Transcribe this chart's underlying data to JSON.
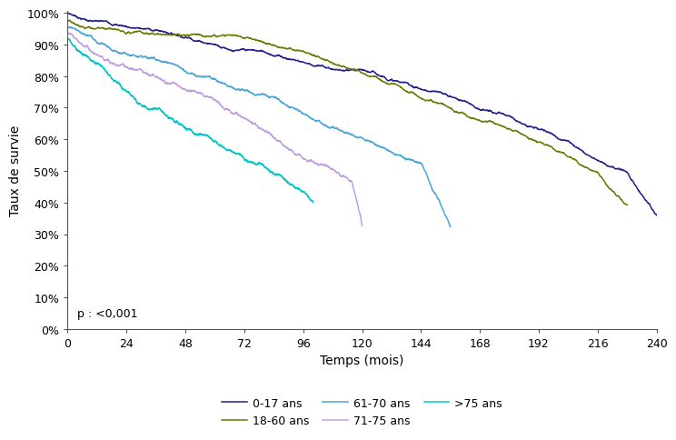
{
  "title": "",
  "ylabel": "Taux de survie",
  "xlabel": "Temps (mois)",
  "annotation": "p : <0,001",
  "xlim": [
    0,
    240
  ],
  "ylim": [
    0.0,
    1.005
  ],
  "xticks": [
    0,
    24,
    48,
    72,
    96,
    120,
    144,
    168,
    192,
    216,
    240
  ],
  "yticks": [
    0.0,
    0.1,
    0.2,
    0.3,
    0.4,
    0.5,
    0.6,
    0.7,
    0.8,
    0.9,
    1.0
  ],
  "background_color": "#ffffff",
  "curve_keypoints": {
    "0-17 ans": [
      [
        0,
        1.0
      ],
      [
        6,
        0.985
      ],
      [
        12,
        0.975
      ],
      [
        24,
        0.963
      ],
      [
        36,
        0.952
      ],
      [
        48,
        0.94
      ],
      [
        60,
        0.927
      ],
      [
        72,
        0.912
      ],
      [
        84,
        0.898
      ],
      [
        96,
        0.882
      ],
      [
        108,
        0.863
      ],
      [
        120,
        0.843
      ],
      [
        132,
        0.818
      ],
      [
        144,
        0.79
      ],
      [
        156,
        0.762
      ],
      [
        168,
        0.73
      ],
      [
        180,
        0.695
      ],
      [
        192,
        0.662
      ],
      [
        204,
        0.625
      ],
      [
        216,
        0.582
      ],
      [
        228,
        0.548
      ],
      [
        240,
        0.42
      ]
    ],
    "18-60 ans": [
      [
        0,
        0.975
      ],
      [
        6,
        0.965
      ],
      [
        12,
        0.958
      ],
      [
        24,
        0.945
      ],
      [
        36,
        0.933
      ],
      [
        48,
        0.92
      ],
      [
        60,
        0.905
      ],
      [
        72,
        0.89
      ],
      [
        84,
        0.872
      ],
      [
        96,
        0.852
      ],
      [
        108,
        0.828
      ],
      [
        120,
        0.8
      ],
      [
        132,
        0.772
      ],
      [
        144,
        0.74
      ],
      [
        156,
        0.706
      ],
      [
        168,
        0.672
      ],
      [
        180,
        0.635
      ],
      [
        192,
        0.595
      ],
      [
        204,
        0.55
      ],
      [
        216,
        0.502
      ],
      [
        228,
        0.39
      ]
    ],
    "61-70 ans": [
      [
        0,
        0.955
      ],
      [
        6,
        0.94
      ],
      [
        12,
        0.927
      ],
      [
        24,
        0.903
      ],
      [
        36,
        0.878
      ],
      [
        48,
        0.851
      ],
      [
        60,
        0.822
      ],
      [
        72,
        0.791
      ],
      [
        84,
        0.758
      ],
      [
        96,
        0.722
      ],
      [
        108,
        0.683
      ],
      [
        120,
        0.643
      ],
      [
        132,
        0.6
      ],
      [
        144,
        0.555
      ],
      [
        156,
        0.355
      ]
    ],
    "71-75 ans": [
      [
        0,
        0.938
      ],
      [
        6,
        0.91
      ],
      [
        12,
        0.882
      ],
      [
        24,
        0.845
      ],
      [
        36,
        0.805
      ],
      [
        48,
        0.763
      ],
      [
        60,
        0.72
      ],
      [
        72,
        0.675
      ],
      [
        84,
        0.628
      ],
      [
        96,
        0.578
      ],
      [
        108,
        0.525
      ],
      [
        116,
        0.48
      ],
      [
        120,
        0.345
      ]
    ],
    ">75 ans": [
      [
        0,
        0.92
      ],
      [
        6,
        0.873
      ],
      [
        12,
        0.832
      ],
      [
        18,
        0.795
      ],
      [
        24,
        0.757
      ],
      [
        36,
        0.693
      ],
      [
        48,
        0.63
      ],
      [
        60,
        0.57
      ],
      [
        72,
        0.515
      ],
      [
        84,
        0.46
      ],
      [
        90,
        0.43
      ],
      [
        96,
        0.4
      ],
      [
        100,
        0.37
      ]
    ]
  },
  "series_colors": {
    "0-17 ans": "#1e1e8c",
    "18-60 ans": "#6b7800",
    "61-70 ans": "#4da6d8",
    "71-75 ans": "#c0a0e0",
    ">75 ans": "#00c8c8"
  },
  "series_order": [
    "0-17 ans",
    "18-60 ans",
    "61-70 ans",
    "71-75 ans",
    ">75 ans"
  ]
}
